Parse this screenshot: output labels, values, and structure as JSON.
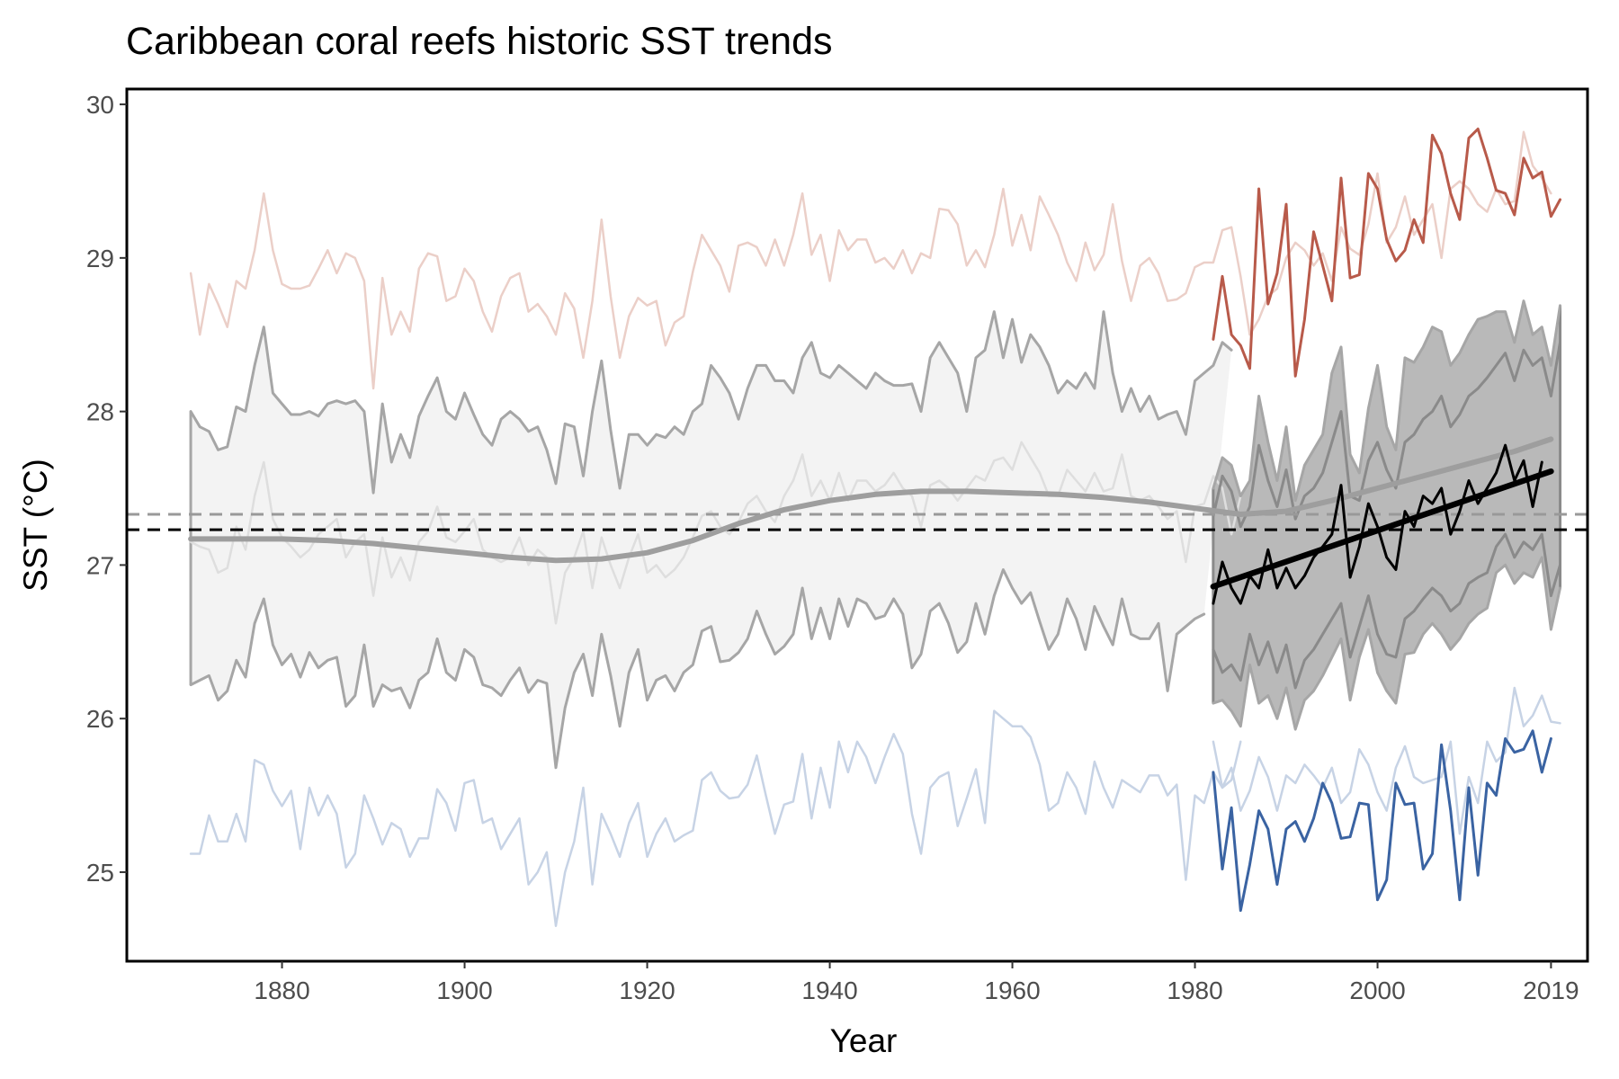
{
  "chart_data": {
    "type": "line",
    "title": "Caribbean coral reefs historic SST trends",
    "xlabel": "Year",
    "ylabel": "SST (°C)",
    "xlim": [
      1863,
      2023
    ],
    "ylim": [
      24.42,
      30.1
    ],
    "x_ticks": [
      1880,
      1900,
      1920,
      1940,
      1960,
      1980,
      2000,
      2019
    ],
    "x_tick_labels": [
      "1880",
      "1900",
      "1920",
      "1940",
      "1960",
      "1980",
      "2000",
      "2019"
    ],
    "y_ticks": [
      25,
      26,
      27,
      28,
      29,
      30
    ],
    "y_tick_labels": [
      "25",
      "26",
      "27",
      "28",
      "29",
      "30"
    ],
    "grid": false,
    "legend": "none",
    "reference_lines": [
      {
        "y": 27.33,
        "style": "dashed",
        "color": "#999999"
      },
      {
        "y": 27.23,
        "style": "dashed",
        "color": "#000000"
      }
    ],
    "colors": {
      "warm_light": "#ebcfc8",
      "warm": "#b85a4a",
      "cool_light": "#c7d3e5",
      "cool": "#3a63a2",
      "band_light": "#f3f3f3",
      "band_dark": "#b9b9b9",
      "envelope": "#a6a6a6",
      "envelope_dark": "#8a8a8a",
      "mean_light": "#dedede",
      "smooth": "#9e9e9e",
      "mean": "#000000"
    },
    "x_start": 1870,
    "recent_start": 1982,
    "series": [
      {
        "role": "max-historic",
        "start": 1870,
        "values": [
          28.9,
          28.5,
          28.83,
          28.7,
          28.55,
          28.85,
          28.8,
          29.05,
          29.42,
          29.05,
          28.83,
          28.8,
          28.8,
          28.82,
          28.93,
          29.05,
          28.9,
          29.03,
          29.0,
          28.85,
          28.15,
          28.87,
          28.5,
          28.65,
          28.52,
          28.93,
          29.03,
          29.01,
          28.72,
          28.75,
          28.93,
          28.85,
          28.65,
          28.52,
          28.75,
          28.87,
          28.9,
          28.65,
          28.7,
          28.62,
          28.5,
          28.77,
          28.67,
          28.35,
          28.72,
          29.25,
          28.75,
          28.35,
          28.62,
          28.74,
          28.69,
          28.72,
          28.43,
          28.58,
          28.62,
          28.91,
          29.15,
          29.05,
          28.95,
          28.78,
          29.08,
          29.1,
          29.07,
          28.95,
          29.12,
          28.95,
          29.15,
          29.42,
          29.02,
          29.15,
          28.85,
          29.18,
          29.05,
          29.12,
          29.12,
          28.97,
          29.0,
          28.93,
          29.05,
          28.9,
          29.03,
          29.0,
          29.32,
          29.31,
          29.22,
          28.95,
          29.05,
          28.94,
          29.15,
          29.45,
          29.08,
          29.28,
          29.05,
          29.4,
          29.28,
          29.15,
          28.97,
          28.85,
          29.1,
          28.92,
          29.02,
          29.35,
          28.98,
          28.72,
          28.95,
          29.0,
          28.9,
          28.72,
          28.73,
          28.77,
          28.94,
          28.97,
          28.97,
          29.18,
          29.2,
          28.88,
          28.5,
          28.6,
          28.75,
          28.8,
          29.0,
          29.1,
          29.05,
          28.95,
          29.03,
          28.85,
          29.2,
          29.06,
          29.02,
          29.22,
          29.55,
          29.1,
          29.2,
          29.4,
          29.15,
          29.25,
          29.35,
          29.0,
          29.45,
          29.5,
          29.45,
          29.35,
          29.3,
          29.45,
          29.35,
          29.37,
          29.82,
          29.6,
          29.52,
          29.42
        ]
      },
      {
        "role": "max-recent",
        "start": 1982,
        "values": [
          28.47,
          28.88,
          28.5,
          28.43,
          28.28,
          29.45,
          28.7,
          28.9,
          29.35,
          28.23,
          28.6,
          29.17,
          28.95,
          28.72,
          29.52,
          28.87,
          28.89,
          29.55,
          29.45,
          29.12,
          28.98,
          29.05,
          29.25,
          29.1,
          29.8,
          29.68,
          29.42,
          29.25,
          29.78,
          29.84,
          29.65,
          29.44,
          29.42,
          29.28,
          29.65,
          29.52,
          29.56,
          29.27,
          29.38
        ]
      },
      {
        "role": "min-historic",
        "start": 1870,
        "values": [
          25.12,
          25.12,
          25.37,
          25.2,
          25.2,
          25.38,
          25.2,
          25.73,
          25.7,
          25.53,
          25.43,
          25.53,
          25.15,
          25.55,
          25.37,
          25.5,
          25.38,
          25.03,
          25.12,
          25.5,
          25.35,
          25.18,
          25.32,
          25.28,
          25.1,
          25.22,
          25.22,
          25.54,
          25.45,
          25.27,
          25.58,
          25.6,
          25.32,
          25.35,
          25.15,
          25.25,
          25.35,
          24.92,
          25.0,
          25.13,
          24.65,
          25.0,
          25.2,
          25.55,
          24.92,
          25.38,
          25.25,
          25.1,
          25.32,
          25.45,
          25.1,
          25.25,
          25.35,
          25.2,
          25.24,
          25.27,
          25.6,
          25.65,
          25.53,
          25.48,
          25.49,
          25.57,
          25.76,
          25.5,
          25.25,
          25.44,
          25.46,
          25.77,
          25.35,
          25.68,
          25.42,
          25.85,
          25.65,
          25.85,
          25.75,
          25.58,
          25.75,
          25.9,
          25.77,
          25.38,
          25.12,
          25.55,
          25.62,
          25.65,
          25.3,
          25.48,
          25.67,
          25.32,
          26.05,
          26.0,
          25.95,
          25.95,
          25.88,
          25.7,
          25.4,
          25.45,
          25.65,
          25.55,
          25.38,
          25.72,
          25.55,
          25.42,
          25.6,
          25.56,
          25.52,
          25.63,
          25.63,
          25.5,
          25.57,
          24.95,
          25.5,
          25.45,
          25.65,
          25.55,
          25.6,
          25.85
        ]
      },
      {
        "role": "min-recent",
        "start": 1982,
        "values": [
          25.65,
          25.02,
          25.42,
          24.75,
          25.05,
          25.4,
          25.28,
          24.92,
          25.28,
          25.33,
          25.2,
          25.35,
          25.58,
          25.45,
          25.22,
          25.23,
          25.45,
          25.44,
          24.82,
          24.95,
          25.58,
          25.44,
          25.45,
          25.02,
          25.12,
          25.83,
          25.4,
          24.82,
          25.55,
          24.98,
          25.58,
          25.5,
          25.87,
          25.78,
          25.8,
          25.92,
          25.65,
          25.87
        ]
      },
      {
        "role": "min-recent-light",
        "start": 1982,
        "values": [
          25.85,
          25.55,
          25.68,
          25.4,
          25.53,
          25.75,
          25.62,
          25.4,
          25.63,
          25.58,
          25.7,
          25.63,
          25.55,
          25.68,
          25.45,
          25.52,
          25.8,
          25.7,
          25.52,
          25.4,
          25.68,
          25.82,
          25.62,
          25.58,
          25.6,
          25.62,
          25.85,
          25.25,
          25.62,
          25.45,
          25.85,
          25.72,
          25.78,
          26.2,
          25.95,
          26.02,
          26.15,
          25.98,
          25.97
        ]
      },
      {
        "role": "mean-historic",
        "start": 1870,
        "values": [
          27.15,
          27.12,
          27.1,
          26.95,
          26.98,
          27.25,
          27.1,
          27.45,
          27.67,
          27.3,
          27.18,
          27.12,
          27.05,
          27.1,
          27.2,
          27.25,
          27.3,
          27.05,
          27.15,
          27.2,
          26.8,
          27.18,
          26.92,
          27.05,
          26.9,
          27.15,
          27.22,
          27.38,
          27.18,
          27.15,
          27.22,
          27.3,
          27.1,
          27.05,
          27.02,
          27.05,
          27.18,
          27.0,
          27.1,
          27.05,
          26.62,
          26.95,
          27.05,
          27.22,
          26.85,
          27.18,
          27.0,
          26.85,
          27.05,
          27.2,
          26.95,
          27.0,
          26.92,
          26.97,
          27.05,
          27.18,
          27.32,
          27.35,
          27.25,
          27.2,
          27.28,
          27.4,
          27.45,
          27.35,
          27.28,
          27.45,
          27.55,
          27.72,
          27.45,
          27.55,
          27.42,
          27.6,
          27.42,
          27.55,
          27.55,
          27.48,
          27.52,
          27.6,
          27.5,
          27.45,
          27.25,
          27.52,
          27.55,
          27.5,
          27.42,
          27.5,
          27.58,
          27.55,
          27.68,
          27.7,
          27.62,
          27.8,
          27.7,
          27.6,
          27.45,
          27.45,
          27.62,
          27.55,
          27.48,
          27.6,
          27.48,
          27.5,
          27.72,
          27.45,
          27.42,
          27.45,
          27.38,
          27.3,
          27.35,
          27.02,
          27.38,
          27.4,
          27.58,
          27.5,
          27.2,
          27.45
        ]
      },
      {
        "role": "mean-recent",
        "start": 1982,
        "values": [
          26.75,
          27.02,
          26.85,
          26.75,
          26.93,
          26.85,
          27.1,
          26.85,
          26.98,
          26.85,
          26.93,
          27.05,
          27.12,
          27.2,
          27.52,
          26.92,
          27.12,
          27.4,
          27.25,
          27.05,
          26.97,
          27.35,
          27.25,
          27.45,
          27.4,
          27.5,
          27.2,
          27.35,
          27.55,
          27.4,
          27.5,
          27.6,
          27.78,
          27.55,
          27.68,
          27.38,
          27.67
        ]
      },
      {
        "role": "band-upper",
        "start": 1870,
        "values": [
          28.0,
          27.9,
          27.87,
          27.75,
          27.77,
          28.03,
          28.0,
          28.3,
          28.55,
          28.12,
          28.05,
          27.98,
          27.98,
          28.0,
          27.97,
          28.05,
          28.07,
          28.05,
          28.07,
          28.0,
          27.47,
          28.05,
          27.67,
          27.85,
          27.7,
          27.97,
          28.1,
          28.22,
          28.0,
          27.95,
          28.12,
          27.98,
          27.85,
          27.78,
          27.95,
          28.0,
          27.95,
          27.87,
          27.9,
          27.75,
          27.53,
          27.92,
          27.9,
          27.58,
          28.0,
          28.33,
          27.88,
          27.5,
          27.85,
          27.85,
          27.78,
          27.85,
          27.83,
          27.9,
          27.85,
          28.0,
          28.05,
          28.3,
          28.22,
          28.12,
          27.95,
          28.15,
          28.3,
          28.3,
          28.2,
          28.2,
          28.12,
          28.35,
          28.45,
          28.25,
          28.22,
          28.3,
          28.25,
          28.2,
          28.15,
          28.25,
          28.2,
          28.17,
          28.17,
          28.18,
          28.0,
          28.35,
          28.45,
          28.35,
          28.25,
          28.0,
          28.35,
          28.4,
          28.65,
          28.35,
          28.6,
          28.32,
          28.5,
          28.42,
          28.3,
          28.12,
          28.2,
          28.15,
          28.25,
          28.15,
          28.65,
          28.25,
          28.0,
          28.15,
          28.0,
          28.1,
          27.95,
          27.98,
          28.0,
          27.85,
          28.2,
          28.25,
          28.3,
          28.45,
          28.4
        ]
      },
      {
        "role": "band-lower",
        "start": 1870,
        "values": [
          26.22,
          26.25,
          26.28,
          26.12,
          26.18,
          26.38,
          26.27,
          26.62,
          26.78,
          26.48,
          26.35,
          26.42,
          26.27,
          26.43,
          26.33,
          26.38,
          26.4,
          26.08,
          26.15,
          26.48,
          26.08,
          26.22,
          26.18,
          26.2,
          26.07,
          26.25,
          26.3,
          26.52,
          26.3,
          26.25,
          26.45,
          26.4,
          26.22,
          26.2,
          26.15,
          26.25,
          26.33,
          26.17,
          26.25,
          26.23,
          25.68,
          26.07,
          26.3,
          26.42,
          26.15,
          26.55,
          26.28,
          25.95,
          26.3,
          26.45,
          26.12,
          26.25,
          26.28,
          26.18,
          26.3,
          26.35,
          26.57,
          26.6,
          26.37,
          26.38,
          26.43,
          26.52,
          26.7,
          26.55,
          26.42,
          26.47,
          26.55,
          26.85,
          26.52,
          26.72,
          26.52,
          26.78,
          26.6,
          26.78,
          26.75,
          26.65,
          26.67,
          26.78,
          26.68,
          26.33,
          26.42,
          26.7,
          26.75,
          26.62,
          26.43,
          26.5,
          26.75,
          26.55,
          26.8,
          26.97,
          26.85,
          26.75,
          26.82,
          26.63,
          26.45,
          26.55,
          26.78,
          26.65,
          26.45,
          26.73,
          26.6,
          26.48,
          26.78,
          26.55,
          26.52,
          26.52,
          26.62,
          26.18,
          26.55,
          26.6,
          26.65,
          26.68
        ]
      },
      {
        "role": "dark-band-upper",
        "start": 1982,
        "values": [
          27.5,
          27.7,
          27.65,
          27.45,
          27.55,
          28.1,
          27.8,
          27.55,
          27.9,
          27.42,
          27.65,
          27.75,
          27.85,
          28.25,
          28.42,
          27.72,
          27.6,
          28.02,
          28.3,
          27.9,
          27.75,
          28.35,
          28.32,
          28.42,
          28.55,
          28.52,
          28.3,
          28.38,
          28.5,
          28.6,
          28.62,
          28.65,
          28.65,
          28.45,
          28.72,
          28.5,
          28.55,
          28.3,
          28.69
        ]
      },
      {
        "role": "dark-band-lower",
        "start": 1982,
        "values": [
          26.1,
          26.12,
          26.05,
          25.95,
          26.35,
          26.1,
          26.15,
          26.0,
          26.2,
          25.93,
          26.12,
          26.18,
          26.28,
          26.4,
          26.52,
          26.12,
          26.4,
          26.58,
          26.3,
          26.18,
          26.1,
          26.42,
          26.43,
          26.55,
          26.62,
          26.55,
          26.45,
          26.52,
          26.62,
          26.68,
          26.72,
          26.95,
          27.0,
          26.88,
          26.95,
          26.92,
          27.05,
          26.58,
          26.85
        ]
      },
      {
        "role": "inner-upper",
        "start": 1982,
        "values": [
          27.32,
          27.58,
          27.48,
          27.25,
          27.38,
          27.78,
          27.55,
          27.38,
          27.62,
          27.3,
          27.45,
          27.5,
          27.6,
          27.8,
          28.0,
          27.45,
          27.42,
          27.68,
          27.8,
          27.62,
          27.5,
          27.8,
          27.85,
          27.95,
          28.0,
          28.1,
          27.9,
          27.98,
          28.1,
          28.15,
          28.22,
          28.3,
          28.38,
          28.2,
          28.4,
          28.3,
          28.35,
          28.1,
          28.45
        ]
      },
      {
        "role": "inner-lower",
        "start": 1982,
        "values": [
          26.45,
          26.3,
          26.35,
          26.25,
          26.55,
          26.35,
          26.5,
          26.3,
          26.48,
          26.2,
          26.38,
          26.45,
          26.55,
          26.65,
          26.75,
          26.4,
          26.6,
          26.8,
          26.55,
          26.42,
          26.4,
          26.65,
          26.7,
          26.78,
          26.85,
          26.8,
          26.7,
          26.75,
          26.88,
          26.92,
          26.95,
          27.12,
          27.2,
          27.05,
          27.15,
          27.1,
          27.2,
          26.8,
          27.0
        ]
      }
    ],
    "smooth": {
      "x": [
        1870,
        1875,
        1880,
        1885,
        1890,
        1895,
        1900,
        1905,
        1910,
        1915,
        1920,
        1925,
        1930,
        1935,
        1940,
        1945,
        1950,
        1955,
        1960,
        1965,
        1970,
        1975,
        1980,
        1985,
        1990,
        1995,
        2000,
        2005,
        2010,
        2015,
        2019
      ],
      "y": [
        27.17,
        27.17,
        27.17,
        27.16,
        27.14,
        27.11,
        27.08,
        27.05,
        27.03,
        27.04,
        27.08,
        27.16,
        27.27,
        27.36,
        27.42,
        27.46,
        27.48,
        27.48,
        27.47,
        27.46,
        27.44,
        27.41,
        27.37,
        27.33,
        27.35,
        27.42,
        27.5,
        27.58,
        27.66,
        27.74,
        27.82
      ]
    },
    "trend": {
      "x": [
        1982,
        2019
      ],
      "y": [
        26.86,
        27.61
      ]
    }
  }
}
